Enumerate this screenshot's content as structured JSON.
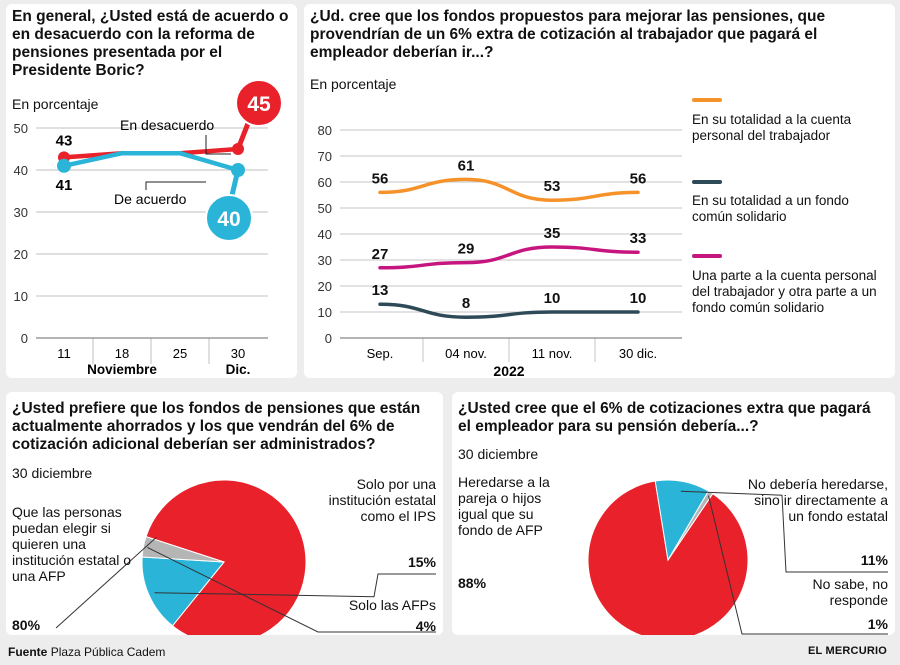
{
  "chart_data": [
    {
      "type": "line",
      "title": "En general, ¿Usted está de acuerdo o en desacuerdo con la reforma de pensiones presentada por el Presidente Boric?",
      "subtitle": "En porcentaje",
      "categories": [
        "11",
        "18",
        "25",
        "30"
      ],
      "group_labels": [
        "Noviembre",
        "Dic."
      ],
      "ylim": [
        0,
        50
      ],
      "yticks": [
        0,
        10,
        20,
        30,
        40,
        50
      ],
      "grid": true,
      "series": [
        {
          "name": "En desacuerdo",
          "color": "#e8212b",
          "points": [
            [
              11,
              43
            ],
            [
              30,
              45
            ]
          ],
          "labels": [
            "43",
            "45"
          ]
        },
        {
          "name": "De acuerdo",
          "color": "#29b4d8",
          "points": [
            [
              11,
              41
            ],
            [
              30,
              40
            ]
          ],
          "labels": [
            "41",
            "40"
          ]
        }
      ]
    },
    {
      "type": "line",
      "title": "¿Ud. cree que los fondos propuestos para mejorar las pensiones, que provendrían de un 6% extra de cotización al trabajador que pagará el empleador deberían ir...?",
      "subtitle": "En porcentaje",
      "categories": [
        "Sep.",
        "04 nov.",
        "11 nov.",
        "30 dic."
      ],
      "xlabel": "2022",
      "ylim": [
        0,
        80
      ],
      "yticks": [
        0,
        10,
        20,
        30,
        40,
        50,
        60,
        70,
        80
      ],
      "grid": true,
      "legend": "right",
      "series": [
        {
          "name": "En su totalidad a la cuenta personal del trabajador",
          "color": "#f5922a",
          "values": [
            56,
            61,
            53,
            56
          ]
        },
        {
          "name": "En su totalidad a un fondo común solidario",
          "color": "#2e4a57",
          "values": [
            13,
            8,
            10,
            10
          ]
        },
        {
          "name": "Una parte a la cuenta personal del trabajador y otra parte a un fondo común solidario",
          "color": "#c7157f",
          "values": [
            27,
            29,
            35,
            33
          ]
        }
      ]
    },
    {
      "type": "pie",
      "title": "¿Usted prefiere que los fondos de pensiones que están actualmente ahorrados y los que vendrán del 6% de cotización adicional deberían ser administrados?",
      "subtitle": "30 diciembre",
      "slices": [
        {
          "label": "Que las personas puedan elegir si quieren una institución estatal o una AFP",
          "value": 80,
          "display": "80%",
          "color": "#e8212b"
        },
        {
          "label": "Solo por una institución estatal como el IPS",
          "value": 15,
          "display": "15%",
          "color": "#29b4d8"
        },
        {
          "label": "Solo las AFPs",
          "value": 4,
          "display": "4%",
          "color": "#b5b5b5"
        }
      ]
    },
    {
      "type": "pie",
      "title": "¿Usted cree que el 6% de cotizaciones extra que pagará el empleador para su pensión debería...?",
      "subtitle": "30 diciembre",
      "slices": [
        {
          "label": "Heredarse a la pareja o hijos igual que su fondo de AFP",
          "value": 88,
          "display": "88%",
          "color": "#e8212b"
        },
        {
          "label": "No debería heredarse, sino ir directamente a un fondo estatal",
          "value": 11,
          "display": "11%",
          "color": "#29b4d8"
        },
        {
          "label": "No sabe, no responde",
          "value": 1,
          "display": "1%",
          "color": "#b5b5b5"
        }
      ]
    }
  ],
  "source": {
    "label": "Fuente",
    "text": "Plaza Pública Cadem"
  },
  "brand": "EL MERCURIO"
}
